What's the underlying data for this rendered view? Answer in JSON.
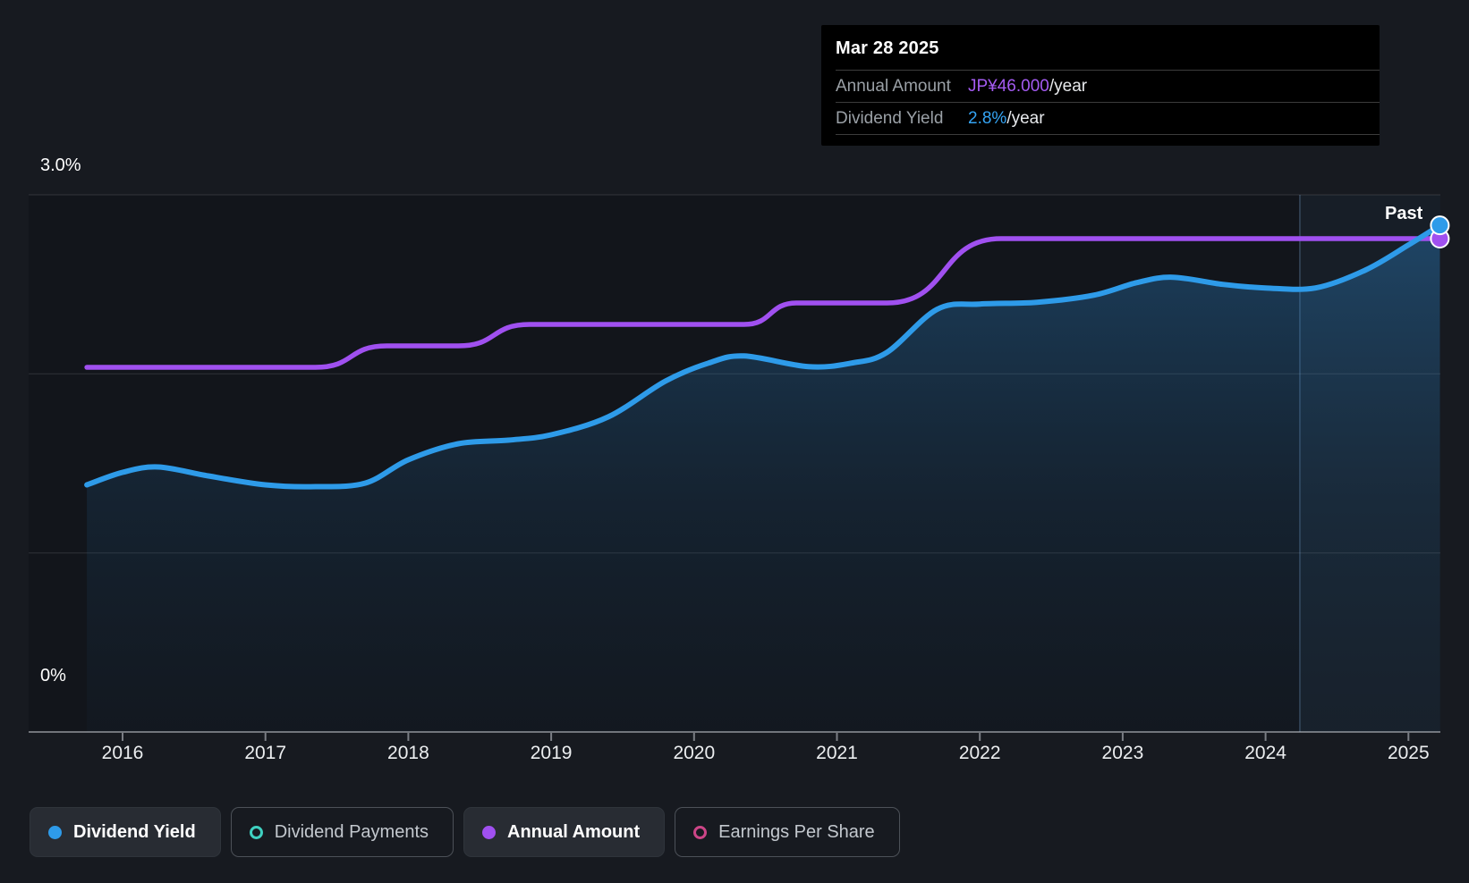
{
  "tooltip": {
    "date": "Mar 28 2025",
    "rows": [
      {
        "label": "Annual Amount",
        "value": "JP¥46.000",
        "suffix": "/year",
        "color": "#a45bf2"
      },
      {
        "label": "Dividend Yield",
        "value": "2.8%",
        "suffix": "/year",
        "color": "#35a4f4"
      }
    ]
  },
  "axis": {
    "y_top_label": "3.0%",
    "y_bottom_label": "0%",
    "years": [
      2016,
      2017,
      2018,
      2019,
      2020,
      2021,
      2022,
      2023,
      2024,
      2025
    ]
  },
  "past_label": "Past",
  "legend": [
    {
      "label": "Dividend Yield",
      "color": "#2e9be9",
      "filled": true,
      "active": true
    },
    {
      "label": "Dividend Payments",
      "color": "#3fd0c0",
      "filled": false,
      "active": false
    },
    {
      "label": "Annual Amount",
      "color": "#a050f0",
      "filled": true,
      "active": true
    },
    {
      "label": "Earnings Per Share",
      "color": "#cc4587",
      "filled": false,
      "active": false
    }
  ],
  "chart_data": {
    "type": "area",
    "title": "Dividend history",
    "x_range": [
      2015.75,
      2025.25
    ],
    "x_ticks": [
      2016,
      2017,
      2018,
      2019,
      2020,
      2021,
      2022,
      2023,
      2024,
      2025
    ],
    "y_axis_percent": {
      "min": 0,
      "max": 3.0,
      "labeled_ticks": [
        "3.0%",
        "0%"
      ],
      "gridlines_percent": [
        0,
        1,
        2,
        3
      ]
    },
    "y_axis_yen": {
      "min": 0,
      "max": 50
    },
    "past_divider_year": 2024.24,
    "legend_position": "bottom",
    "grid": true,
    "series": [
      {
        "name": "Dividend Yield",
        "unit": "%",
        "color": "#2e9be9",
        "style": "area-line",
        "end_value_label": "2.8%/year",
        "points": [
          [
            2015.75,
            1.38
          ],
          [
            2016.0,
            1.45
          ],
          [
            2016.25,
            1.48
          ],
          [
            2016.6,
            1.43
          ],
          [
            2017.0,
            1.38
          ],
          [
            2017.35,
            1.37
          ],
          [
            2017.7,
            1.39
          ],
          [
            2018.0,
            1.52
          ],
          [
            2018.35,
            1.61
          ],
          [
            2018.7,
            1.63
          ],
          [
            2019.0,
            1.66
          ],
          [
            2019.4,
            1.76
          ],
          [
            2019.8,
            1.96
          ],
          [
            2020.1,
            2.06
          ],
          [
            2020.35,
            2.1
          ],
          [
            2020.8,
            2.04
          ],
          [
            2021.1,
            2.06
          ],
          [
            2021.35,
            2.12
          ],
          [
            2021.7,
            2.36
          ],
          [
            2022.0,
            2.39
          ],
          [
            2022.4,
            2.4
          ],
          [
            2022.8,
            2.44
          ],
          [
            2023.1,
            2.51
          ],
          [
            2023.35,
            2.54
          ],
          [
            2023.7,
            2.5
          ],
          [
            2024.0,
            2.48
          ],
          [
            2024.35,
            2.48
          ],
          [
            2024.7,
            2.58
          ],
          [
            2025.0,
            2.72
          ],
          [
            2025.22,
            2.83
          ]
        ]
      },
      {
        "name": "Annual Amount",
        "unit": "JP¥/year",
        "color": "#a050f0",
        "style": "step-line",
        "end_value_label": "JP¥46.000/year",
        "points": [
          [
            2015.75,
            34
          ],
          [
            2017.35,
            34
          ],
          [
            2017.85,
            36
          ],
          [
            2018.35,
            36
          ],
          [
            2018.85,
            38
          ],
          [
            2020.35,
            38
          ],
          [
            2020.72,
            40
          ],
          [
            2021.35,
            40
          ],
          [
            2022.15,
            46
          ],
          [
            2025.22,
            46
          ]
        ]
      }
    ]
  }
}
